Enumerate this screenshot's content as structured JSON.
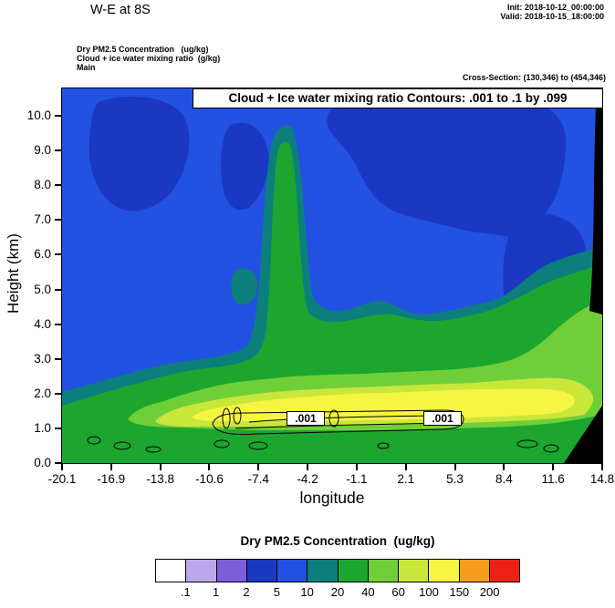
{
  "header": {
    "title": "W-E at 8S",
    "init": "Init: 2018-10-12_00:00:00",
    "valid": "Valid: 2018-10-15_18:00:00",
    "field1": "Dry PM2.5 Concentration   (ug/kg)",
    "field2": "Cloud + ice water mixing ratio  (g/kg)",
    "field3": "Main",
    "cross_section": "Cross-Section: (130,346) to (454,346)"
  },
  "plot": {
    "overlay_title": "Cloud + Ice water mixing ratio Contours: .001 to .1 by .099",
    "ylabel": "Height (km)",
    "xlabel": "longitude",
    "yticks": [
      "0.0",
      "1.0",
      "2.0",
      "3.0",
      "4.0",
      "5.0",
      "6.0",
      "7.0",
      "8.0",
      "9.0",
      "10.0"
    ],
    "xticks": [
      "-20.1",
      "-16.9",
      "-13.8",
      "-10.6",
      "-7.4",
      "-4.2",
      "-1.1",
      "2.1",
      "5.3",
      "8.4",
      "11.6",
      "14.8"
    ],
    "contour_labels": [
      ".001",
      ".001"
    ]
  },
  "colorbar": {
    "title": "Dry PM2.5 Concentration  (ug/kg)",
    "labels": [
      ".1",
      "1",
      "2",
      "5",
      "10",
      "20",
      "40",
      "60",
      "100",
      "150",
      "200"
    ],
    "colors": [
      "#ffffff",
      "#b9a9ec",
      "#7a5fd8",
      "#1a38c2",
      "#2351e2",
      "#0c7f7c",
      "#1ca62f",
      "#70cf38",
      "#c9e63b",
      "#f5f542",
      "#f79c1d",
      "#ee2214"
    ]
  },
  "chart_data": {
    "type": "heatmap",
    "subtype": "filled-contour vertical cross-section",
    "title": "Cloud + Ice water mixing ratio Contours: .001 to .1 by .099",
    "section_title": "W-E at 8S",
    "xlabel": "longitude",
    "ylabel": "Height (km)",
    "xlim": [
      -20.1,
      14.8
    ],
    "ylim": [
      0.0,
      10.8
    ],
    "x_ticks": [
      -20.1,
      -16.9,
      -13.8,
      -10.6,
      -7.4,
      -4.2,
      -1.1,
      2.1,
      5.3,
      8.4,
      11.6,
      14.8
    ],
    "y_ticks": [
      0,
      1,
      2,
      3,
      4,
      5,
      6,
      7,
      8,
      9,
      10
    ],
    "grid": false,
    "fill_series": {
      "name": "Dry PM2.5 Concentration (ug/kg)",
      "level_boundaries": [
        0.1,
        1,
        2,
        5,
        10,
        20,
        40,
        60,
        100,
        150,
        200
      ],
      "colors": [
        "#ffffff",
        "#b9a9ec",
        "#7a5fd8",
        "#1a38c2",
        "#2351e2",
        "#0c7f7c",
        "#1ca62f",
        "#70cf38",
        "#c9e63b",
        "#f5f542",
        "#f79c1d",
        "#ee2214"
      ],
      "legend_position": "bottom"
    },
    "contour_series": {
      "name": "Cloud + Ice water mixing ratio (g/kg)",
      "levels": [
        0.001,
        0.1
      ],
      "interval": 0.099,
      "label": ".001"
    },
    "cross_section": {
      "from_gridpoint": [
        130,
        346
      ],
      "to_gridpoint": [
        454,
        346
      ]
    },
    "init_time": "2018-10-12_00:00:00",
    "valid_time": "2018-10-15_18:00:00",
    "features": [
      "PM2.5 maximum band of 100-150 ug/kg centered near 1.5-2.5 km height spanning longitudes -15 to 13",
      "Surrounding 60-100 and 40-60 ug/kg bands between roughly 1 and 3 km, rising to ~4 km toward the east",
      "20-40 ug/kg green layer filling most of the lowest 3 km and the eastern half below 5 km",
      "Narrow plume of 10-40 ug/kg rising to ~9 km near longitude -6",
      "Background 5-10 ug/kg blue aloft with 2-5 ug/kg darker blue pockets above ~6 km",
      "Cloud + ice 0.001 g/kg contour enclosing a shallow layer near 1 km between longitudes -9 and 6, plus small cells near the surface",
      "Black masked terrain wedge at the far eastern edge"
    ]
  }
}
